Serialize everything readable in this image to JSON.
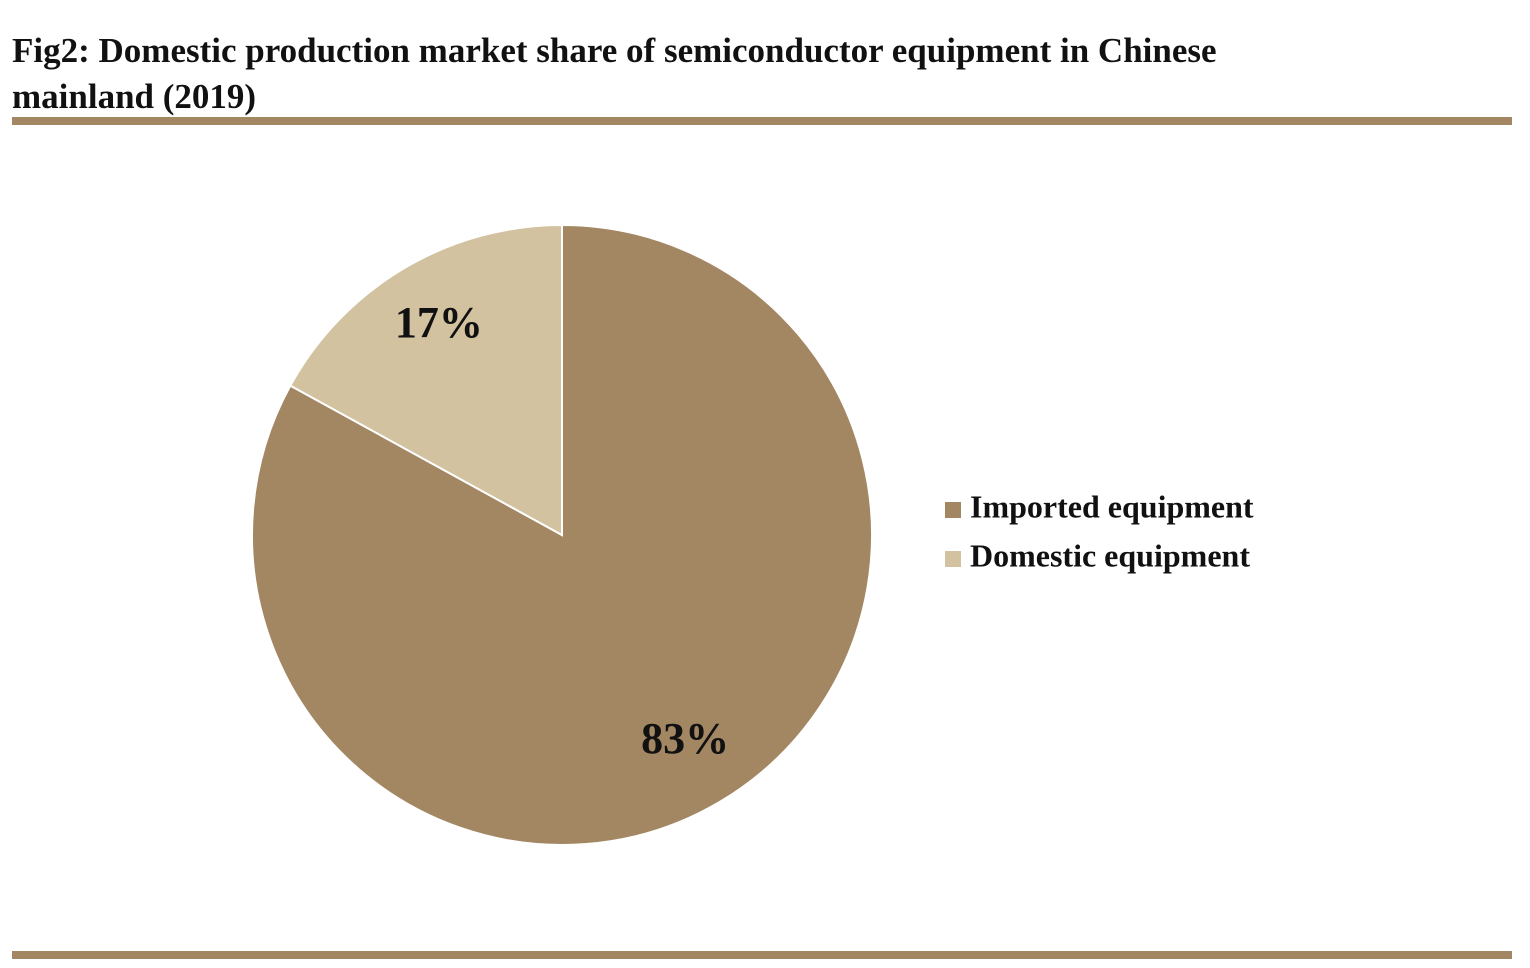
{
  "chart_data": {
    "type": "pie",
    "title": "Fig2: Domestic production market share of semiconductor equipment in Chinese mainland (2019)",
    "categories": [
      "Imported equipment",
      "Domestic equipment"
    ],
    "values": [
      83,
      17
    ],
    "value_labels": [
      "83%",
      "17%"
    ],
    "colors": [
      "#a38662",
      "#d2c29f"
    ],
    "start_angle": 0,
    "direction": "clockwise",
    "legend": "right"
  }
}
